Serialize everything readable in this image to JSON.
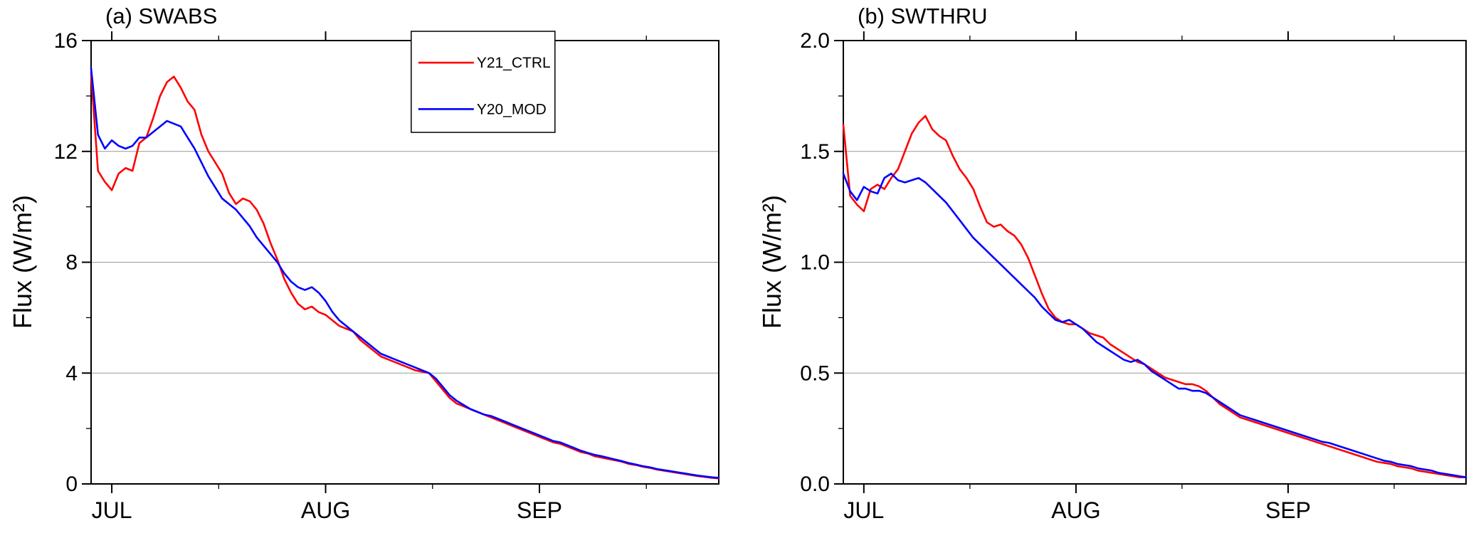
{
  "figure": {
    "background": "#ffffff",
    "series_colors": {
      "Y21_CTRL": "#ff0000",
      "Y20_MOD": "#0000ff"
    },
    "grid_color": "#999999"
  },
  "chart_data": [
    {
      "type": "line",
      "panel_label": "(a) SWABS",
      "ylabel": "Flux (W/m²)",
      "xlabel": "",
      "x_range": [
        0,
        91
      ],
      "x_ticks": [
        {
          "pos": 3,
          "label": "JUL"
        },
        {
          "pos": 34,
          "label": "AUG"
        },
        {
          "pos": 65,
          "label": "SEP"
        }
      ],
      "x_ticks_minor": [
        18.5,
        49.5,
        80.5
      ],
      "ylim": [
        0,
        16
      ],
      "yticks": [
        0,
        4,
        8,
        12,
        16
      ],
      "ytick_labels": [
        "0",
        "4",
        "8",
        "12",
        "16"
      ],
      "yticks_minor": [
        2,
        6,
        10,
        14
      ],
      "grid": "horizontal",
      "legend": {
        "position": "top-right",
        "entries": [
          {
            "label": "Y21_CTRL",
            "color": "#ff0000"
          },
          {
            "label": "Y20_MOD",
            "color": "#0000ff"
          }
        ]
      },
      "series": [
        {
          "name": "Y21_CTRL",
          "color": "#ff0000",
          "values": [
            14.8,
            11.3,
            10.9,
            10.6,
            11.2,
            11.4,
            11.3,
            12.3,
            12.5,
            13.2,
            14.0,
            14.5,
            14.7,
            14.3,
            13.8,
            13.5,
            12.6,
            12.0,
            11.6,
            11.2,
            10.5,
            10.1,
            10.3,
            10.2,
            9.9,
            9.4,
            8.7,
            8.1,
            7.4,
            6.9,
            6.5,
            6.3,
            6.4,
            6.2,
            6.1,
            5.9,
            5.7,
            5.6,
            5.5,
            5.2,
            5.0,
            4.8,
            4.6,
            4.5,
            4.4,
            4.3,
            4.2,
            4.1,
            4.05,
            4.0,
            3.7,
            3.4,
            3.1,
            2.9,
            2.8,
            2.7,
            2.6,
            2.5,
            2.4,
            2.3,
            2.2,
            2.1,
            2.0,
            1.9,
            1.8,
            1.7,
            1.6,
            1.5,
            1.45,
            1.35,
            1.25,
            1.15,
            1.1,
            1.0,
            0.95,
            0.9,
            0.85,
            0.8,
            0.72,
            0.68,
            0.62,
            0.58,
            0.52,
            0.48,
            0.44,
            0.4,
            0.36,
            0.32,
            0.28,
            0.25,
            0.22,
            0.2
          ]
        },
        {
          "name": "Y20_MOD",
          "color": "#0000ff",
          "values": [
            15.0,
            12.6,
            12.1,
            12.4,
            12.2,
            12.1,
            12.2,
            12.5,
            12.5,
            12.7,
            12.9,
            13.1,
            13.0,
            12.9,
            12.5,
            12.1,
            11.6,
            11.1,
            10.7,
            10.3,
            10.1,
            9.9,
            9.6,
            9.3,
            8.9,
            8.6,
            8.3,
            8.0,
            7.6,
            7.3,
            7.1,
            7.0,
            7.1,
            6.9,
            6.6,
            6.2,
            5.9,
            5.7,
            5.5,
            5.3,
            5.1,
            4.9,
            4.7,
            4.6,
            4.5,
            4.4,
            4.3,
            4.2,
            4.1,
            4.0,
            3.8,
            3.5,
            3.2,
            3.0,
            2.85,
            2.7,
            2.6,
            2.5,
            2.45,
            2.35,
            2.25,
            2.15,
            2.05,
            1.95,
            1.85,
            1.75,
            1.65,
            1.55,
            1.5,
            1.4,
            1.3,
            1.2,
            1.12,
            1.05,
            1.0,
            0.94,
            0.88,
            0.82,
            0.75,
            0.7,
            0.64,
            0.6,
            0.54,
            0.5,
            0.46,
            0.42,
            0.38,
            0.34,
            0.3,
            0.27,
            0.24,
            0.22
          ]
        }
      ]
    },
    {
      "type": "line",
      "panel_label": "(b) SWTHRU",
      "ylabel": "Flux (W/m²)",
      "xlabel": "",
      "x_range": [
        0,
        91
      ],
      "x_ticks": [
        {
          "pos": 3,
          "label": "JUL"
        },
        {
          "pos": 34,
          "label": "AUG"
        },
        {
          "pos": 65,
          "label": "SEP"
        }
      ],
      "x_ticks_minor": [
        18.5,
        49.5,
        80.5
      ],
      "ylim": [
        0,
        2.0
      ],
      "yticks": [
        0,
        0.5,
        1.0,
        1.5,
        2.0
      ],
      "ytick_labels": [
        "0.0",
        "0.5",
        "1.0",
        "1.5",
        "2.0"
      ],
      "yticks_minor": [
        0.25,
        0.75,
        1.25,
        1.75
      ],
      "grid": "horizontal",
      "legend": null,
      "series": [
        {
          "name": "Y21_CTRL",
          "color": "#ff0000",
          "values": [
            1.62,
            1.3,
            1.26,
            1.23,
            1.33,
            1.35,
            1.33,
            1.38,
            1.42,
            1.5,
            1.58,
            1.63,
            1.66,
            1.6,
            1.57,
            1.55,
            1.48,
            1.42,
            1.38,
            1.33,
            1.25,
            1.18,
            1.16,
            1.17,
            1.14,
            1.12,
            1.08,
            1.02,
            0.94,
            0.86,
            0.79,
            0.75,
            0.73,
            0.72,
            0.72,
            0.7,
            0.68,
            0.67,
            0.66,
            0.63,
            0.61,
            0.59,
            0.57,
            0.55,
            0.54,
            0.52,
            0.5,
            0.48,
            0.47,
            0.46,
            0.45,
            0.45,
            0.44,
            0.42,
            0.39,
            0.36,
            0.34,
            0.32,
            0.3,
            0.29,
            0.28,
            0.27,
            0.26,
            0.25,
            0.24,
            0.23,
            0.22,
            0.21,
            0.2,
            0.19,
            0.18,
            0.17,
            0.16,
            0.15,
            0.14,
            0.13,
            0.12,
            0.11,
            0.1,
            0.095,
            0.09,
            0.08,
            0.075,
            0.07,
            0.06,
            0.055,
            0.05,
            0.045,
            0.04,
            0.035,
            0.03,
            0.03
          ]
        },
        {
          "name": "Y20_MOD",
          "color": "#0000ff",
          "values": [
            1.4,
            1.32,
            1.28,
            1.34,
            1.32,
            1.31,
            1.38,
            1.4,
            1.37,
            1.36,
            1.37,
            1.38,
            1.36,
            1.33,
            1.3,
            1.27,
            1.23,
            1.19,
            1.15,
            1.11,
            1.08,
            1.05,
            1.02,
            0.99,
            0.96,
            0.93,
            0.9,
            0.87,
            0.84,
            0.8,
            0.77,
            0.74,
            0.73,
            0.74,
            0.72,
            0.7,
            0.67,
            0.64,
            0.62,
            0.6,
            0.58,
            0.56,
            0.55,
            0.56,
            0.54,
            0.51,
            0.49,
            0.47,
            0.45,
            0.43,
            0.43,
            0.42,
            0.42,
            0.41,
            0.39,
            0.37,
            0.35,
            0.33,
            0.31,
            0.3,
            0.29,
            0.28,
            0.27,
            0.26,
            0.25,
            0.24,
            0.23,
            0.22,
            0.21,
            0.2,
            0.19,
            0.185,
            0.175,
            0.165,
            0.155,
            0.145,
            0.135,
            0.125,
            0.115,
            0.105,
            0.1,
            0.09,
            0.085,
            0.08,
            0.07,
            0.065,
            0.06,
            0.05,
            0.045,
            0.04,
            0.035,
            0.03
          ]
        }
      ]
    }
  ]
}
